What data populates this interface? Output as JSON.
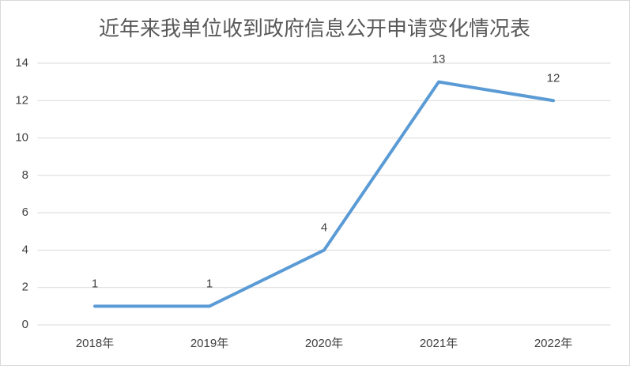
{
  "chart_data": {
    "type": "line",
    "title": "近年来我单位收到政府信息公开申请变化情况表",
    "categories": [
      "2018年",
      "2019年",
      "2020年",
      "2021年",
      "2022年"
    ],
    "values": [
      1,
      1,
      4,
      13,
      12
    ],
    "color": "#5b9bd5",
    "ylim": [
      0,
      14
    ],
    "yticks": [
      0,
      2,
      4,
      6,
      8,
      10,
      12,
      14
    ],
    "grid": true
  }
}
